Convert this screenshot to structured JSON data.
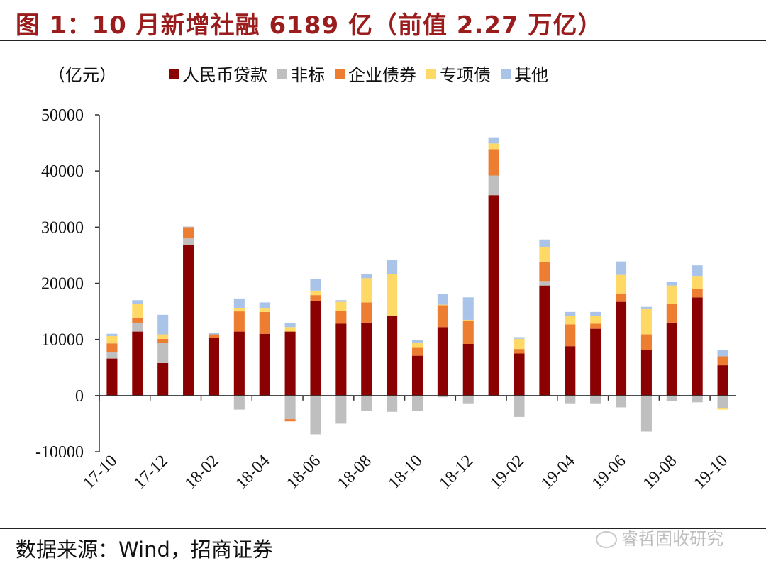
{
  "title": "图 1：10 月新增社融 6189 亿（前值 2.27 万亿）",
  "source": "数据来源：Wind，招商证券",
  "watermark": "睿哲固收研究",
  "unit_label": "（亿元）",
  "colors": {
    "title": "#9b1c1c",
    "loans": "#8b0000",
    "nonstandard": "#bfbfbf",
    "corpbonds": "#ed7d31",
    "specialbonds": "#ffd966",
    "other": "#a9c4e8"
  },
  "chart_data": {
    "type": "bar",
    "stacked": true,
    "ylim": [
      -10000,
      50000
    ],
    "yticks": [
      -10000,
      0,
      10000,
      20000,
      30000,
      40000,
      50000
    ],
    "categories": [
      "17-10",
      "17-11",
      "17-12",
      "18-01",
      "18-02",
      "18-03",
      "18-04",
      "18-05",
      "18-06",
      "18-07",
      "18-08",
      "18-09",
      "18-10",
      "18-11",
      "18-12",
      "19-01",
      "19-02",
      "19-03",
      "19-04",
      "19-05",
      "19-06",
      "19-07",
      "19-08",
      "19-09",
      "19-10"
    ],
    "xtick_labels": [
      "17-10",
      "17-12",
      "18-02",
      "18-04",
      "18-06",
      "18-08",
      "18-10",
      "18-12",
      "19-02",
      "19-04",
      "19-06",
      "19-08",
      "19-10"
    ],
    "legend_position": "top",
    "series": [
      {
        "name": "人民币贷款",
        "color": "#8b0000",
        "values": [
          6600,
          11400,
          5800,
          26800,
          10300,
          11400,
          11000,
          11400,
          16800,
          12800,
          13000,
          14200,
          7100,
          12200,
          9200,
          35700,
          7500,
          19600,
          8800,
          11900,
          16700,
          8100,
          13000,
          17500,
          5400
        ]
      },
      {
        "name": "非标",
        "color": "#bfbfbf",
        "values": [
          1200,
          1600,
          3600,
          1200,
          -100,
          -2500,
          -100,
          -4200,
          -6900,
          -5000,
          -2700,
          -2900,
          -2700,
          -300,
          -1500,
          3500,
          -3800,
          800,
          -1500,
          -1500,
          -2100,
          -6400,
          -1000,
          -1200,
          -2300
        ]
      },
      {
        "name": "企业债券",
        "color": "#ed7d31",
        "values": [
          1500,
          900,
          700,
          2000,
          600,
          3600,
          3900,
          -400,
          1100,
          2300,
          3600,
          0,
          1400,
          3900,
          4200,
          4700,
          800,
          3400,
          3900,
          900,
          1500,
          2800,
          3400,
          1500,
          1600
        ]
      },
      {
        "name": "专项债",
        "color": "#ffd966",
        "values": [
          1300,
          2400,
          800,
          0,
          0,
          600,
          600,
          800,
          800,
          1600,
          4300,
          7500,
          900,
          100,
          100,
          1000,
          1800,
          2600,
          1500,
          1400,
          3300,
          4500,
          3200,
          2300,
          -200
        ]
      },
      {
        "name": "其他",
        "color": "#a9c4e8",
        "values": [
          400,
          700,
          3500,
          100,
          200,
          1700,
          1100,
          800,
          2000,
          300,
          800,
          2500,
          500,
          1900,
          4000,
          1100,
          300,
          1400,
          700,
          700,
          2400,
          400,
          600,
          1900,
          1100
        ]
      }
    ]
  }
}
